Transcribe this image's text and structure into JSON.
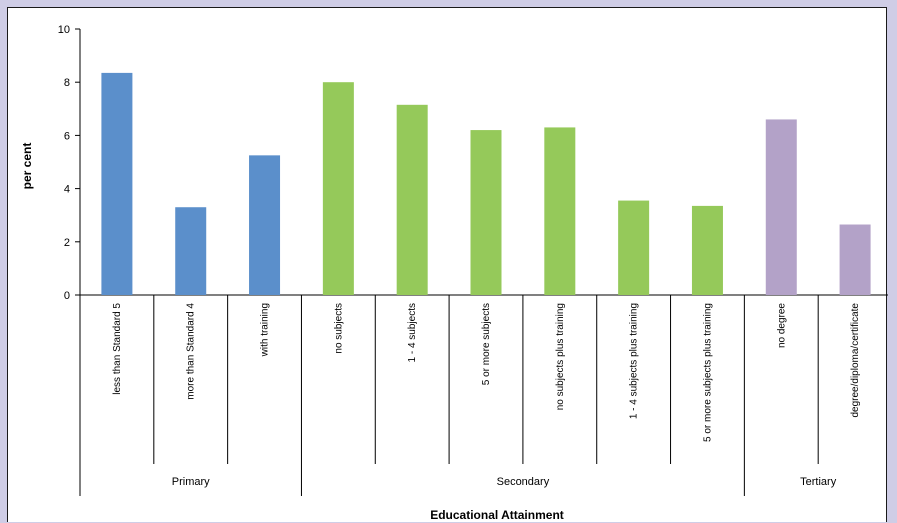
{
  "chart_data": {
    "type": "bar",
    "title": "",
    "xlabel": "Educational Attainment",
    "ylabel": "per cent",
    "ylim": [
      0,
      10
    ],
    "yticks": [
      0,
      2,
      4,
      6,
      8,
      10
    ],
    "grid": false,
    "legend": "none",
    "categories": [
      "less than Standard 5",
      "more than Standard 4",
      "with training",
      "no subjects",
      "1 - 4 subjects",
      "5 or more subjects",
      "no subjects plus training",
      "1 - 4 subjects plus training",
      "5 or more subjects plus training",
      "no degree",
      "degree/diploma/certificate"
    ],
    "values": [
      8.35,
      3.3,
      5.25,
      8.0,
      7.15,
      6.2,
      6.3,
      3.55,
      3.35,
      6.6,
      2.65
    ],
    "groups": [
      {
        "name": "Primary",
        "count": 3,
        "color": "#5b8fcb"
      },
      {
        "name": "Secondary",
        "count": 6,
        "color": "#95c95a"
      },
      {
        "name": "Tertiary",
        "count": 2,
        "color": "#b3a2c8"
      }
    ]
  }
}
